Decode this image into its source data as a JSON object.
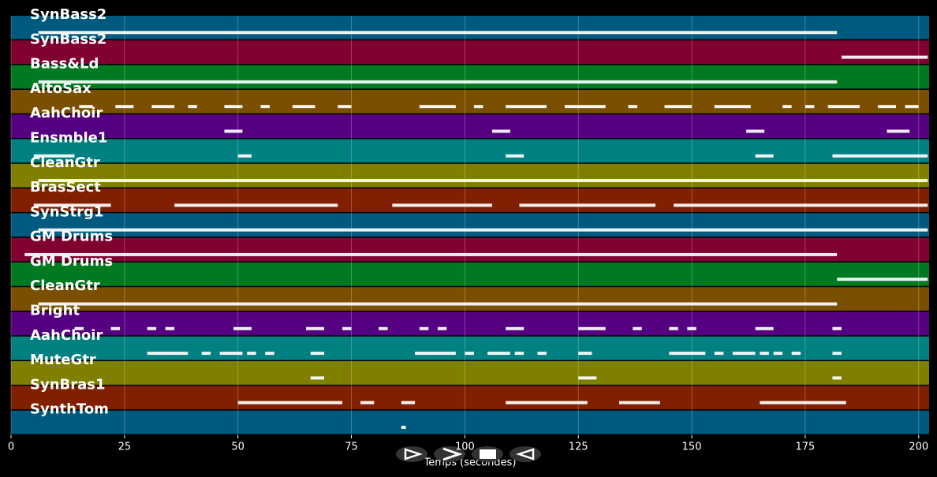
{
  "chart_data": {
    "type": "pianoroll",
    "xlabel": "Temps (secondes)",
    "xlim": [
      0,
      202.3
    ],
    "xticks": [
      0,
      25,
      50,
      75,
      100,
      125,
      150,
      175,
      200
    ],
    "grid": true,
    "series": [
      {
        "name": "SynBass2",
        "color": "#005a80",
        "notes": [
          [
            6,
            182
          ]
        ]
      },
      {
        "name": "SynBass2",
        "color": "#800030",
        "notes": [
          [
            183,
            202
          ]
        ]
      },
      {
        "name": "Bass&Ld",
        "color": "#007a20",
        "notes": [
          [
            6,
            182
          ]
        ]
      },
      {
        "name": "AltoSax",
        "color": "#7a5000",
        "notes": [
          [
            15,
            18
          ],
          [
            23,
            27
          ],
          [
            31,
            36
          ],
          [
            39,
            41
          ],
          [
            47,
            51
          ],
          [
            55,
            57
          ],
          [
            62,
            67
          ],
          [
            72,
            75
          ],
          [
            90,
            98
          ],
          [
            102,
            104
          ],
          [
            109,
            118
          ],
          [
            122,
            131
          ],
          [
            136,
            138
          ],
          [
            144,
            150
          ],
          [
            155,
            163
          ],
          [
            170,
            172
          ],
          [
            175,
            177
          ],
          [
            180,
            187
          ],
          [
            191,
            195
          ],
          [
            197,
            200
          ]
        ]
      },
      {
        "name": "AahChoir",
        "color": "#550080",
        "notes": [
          [
            47,
            51
          ],
          [
            106,
            110
          ],
          [
            162,
            166
          ],
          [
            193,
            198
          ]
        ]
      },
      {
        "name": "Ensmble1",
        "color": "#008080",
        "notes": [
          [
            5,
            14
          ],
          [
            50,
            53
          ],
          [
            109,
            113
          ],
          [
            164,
            168
          ],
          [
            181,
            202
          ]
        ]
      },
      {
        "name": "CleanGtr",
        "color": "#808000",
        "notes": [
          [
            6,
            202
          ]
        ]
      },
      {
        "name": "BrasSect",
        "color": "#802000",
        "notes": [
          [
            5,
            22
          ],
          [
            36,
            72
          ],
          [
            84,
            106
          ],
          [
            112,
            142
          ],
          [
            146,
            202
          ]
        ]
      },
      {
        "name": "SynStrg1",
        "color": "#005a80",
        "notes": [
          [
            6,
            202
          ]
        ]
      },
      {
        "name": "GM Drums",
        "color": "#800030",
        "notes": [
          [
            3,
            182
          ]
        ]
      },
      {
        "name": "GM Drums",
        "color": "#007a20",
        "notes": [
          [
            182,
            202
          ]
        ]
      },
      {
        "name": "CleanGtr",
        "color": "#7a5000",
        "notes": [
          [
            6,
            182
          ]
        ]
      },
      {
        "name": "Bright",
        "color": "#550080",
        "notes": [
          [
            14,
            16
          ],
          [
            22,
            24
          ],
          [
            30,
            32
          ],
          [
            34,
            36
          ],
          [
            49,
            53
          ],
          [
            65,
            69
          ],
          [
            73,
            75
          ],
          [
            81,
            83
          ],
          [
            90,
            92
          ],
          [
            94,
            96
          ],
          [
            109,
            113
          ],
          [
            125,
            131
          ],
          [
            137,
            139
          ],
          [
            145,
            147
          ],
          [
            149,
            151
          ],
          [
            164,
            168
          ],
          [
            181,
            183
          ]
        ]
      },
      {
        "name": "AahChoir",
        "color": "#008080",
        "notes": [
          [
            30,
            39
          ],
          [
            42,
            44
          ],
          [
            46,
            51
          ],
          [
            52,
            54
          ],
          [
            56,
            58
          ],
          [
            66,
            69
          ],
          [
            89,
            98
          ],
          [
            100,
            102
          ],
          [
            105,
            110
          ],
          [
            111,
            113
          ],
          [
            116,
            118
          ],
          [
            125,
            128
          ],
          [
            145,
            153
          ],
          [
            155,
            157
          ],
          [
            159,
            164
          ],
          [
            165,
            167
          ],
          [
            168,
            170
          ],
          [
            172,
            174
          ],
          [
            181,
            183
          ]
        ]
      },
      {
        "name": "MuteGtr",
        "color": "#808000",
        "notes": [
          [
            66,
            69
          ],
          [
            125,
            129
          ],
          [
            181,
            183
          ]
        ]
      },
      {
        "name": "SynBras1",
        "color": "#802000",
        "notes": [
          [
            50,
            73
          ],
          [
            77,
            80
          ],
          [
            86,
            89
          ],
          [
            109,
            127
          ],
          [
            134,
            143
          ],
          [
            165,
            184
          ]
        ]
      },
      {
        "name": "SynthTom",
        "color": "#005a80",
        "notes": [
          [
            86,
            87
          ]
        ]
      }
    ]
  }
}
